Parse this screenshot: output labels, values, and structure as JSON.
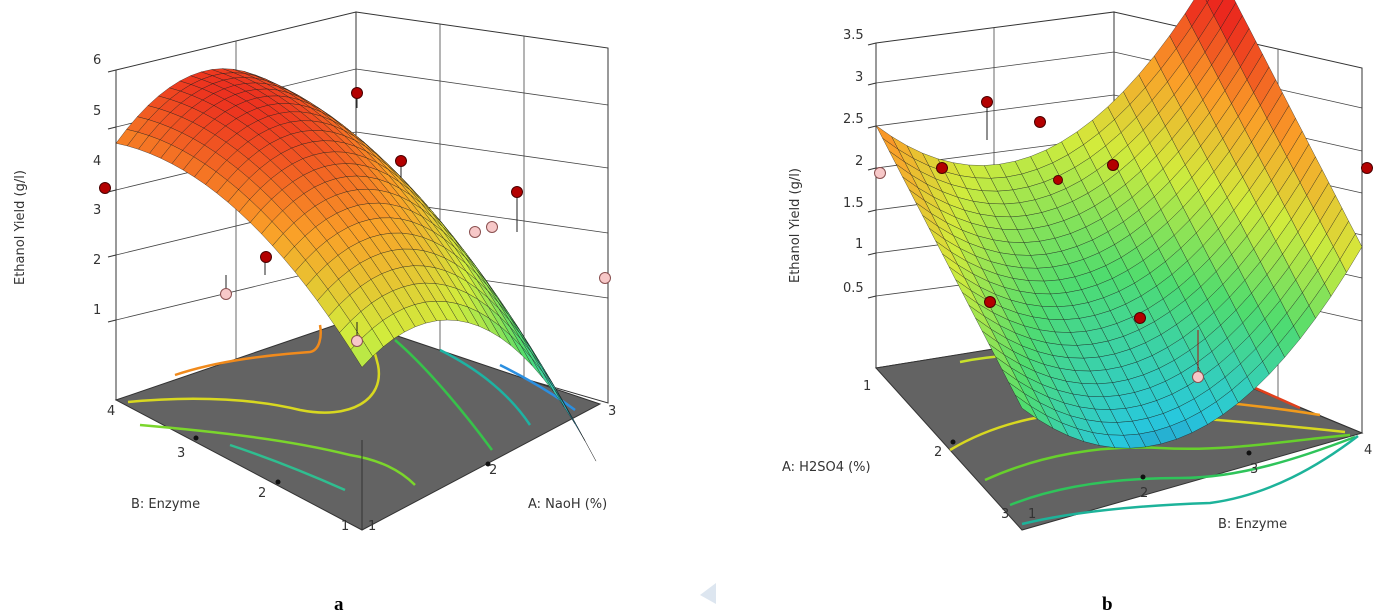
{
  "chart_data": [
    {
      "type": "surface",
      "panel_label": "a",
      "zlabel": "Ethanol Yield (g/l)",
      "zticks": [
        "1",
        "2",
        "3",
        "4",
        "5",
        "6"
      ],
      "x_axis": {
        "label": "A: NaoH (%)",
        "ticks": [
          "1",
          "2",
          "3"
        ],
        "range": [
          1,
          3
        ]
      },
      "y_axis": {
        "label": "B: Enzyme",
        "ticks": [
          "1",
          "2",
          "3",
          "4"
        ],
        "range": [
          1,
          4
        ]
      },
      "zlim": [
        0,
        6
      ],
      "design_points": [
        {
          "A": 1,
          "B": 1,
          "yield": 0.9,
          "above_surface": false
        },
        {
          "A": 1,
          "B": 4,
          "yield": 3.9,
          "above_surface": true
        },
        {
          "A": 3,
          "B": 1,
          "yield": 1.2,
          "above_surface": false
        },
        {
          "A": 2,
          "B": 2.5,
          "yield": 5.4,
          "above_surface": true
        }
      ]
    },
    {
      "type": "surface",
      "panel_label": "b",
      "zlabel": "Ethanol Yield (g/l)",
      "zticks": [
        "0.5",
        "1",
        "1.5",
        "2",
        "2.5",
        "3",
        "3.5"
      ],
      "x_axis": {
        "label": "A: H2SO4 (%)",
        "ticks": [
          "1",
          "2",
          "3"
        ],
        "range": [
          1,
          3
        ]
      },
      "y_axis": {
        "label": "B: Enzyme",
        "ticks": [
          "1",
          "2",
          "3",
          "4"
        ],
        "range": [
          1,
          4
        ]
      },
      "zlim": [
        0,
        3.5
      ],
      "design_points": [
        {
          "A": 1,
          "B": 1,
          "yield": 1.9,
          "above_surface": false
        },
        {
          "A": 1,
          "B": 4,
          "yield": 2.0,
          "above_surface": true
        },
        {
          "A": 3,
          "B": 4,
          "yield": 3.3,
          "above_surface": true
        },
        {
          "A": 2,
          "B": 2.5,
          "yield": 1.6,
          "above_surface": true
        }
      ]
    }
  ]
}
